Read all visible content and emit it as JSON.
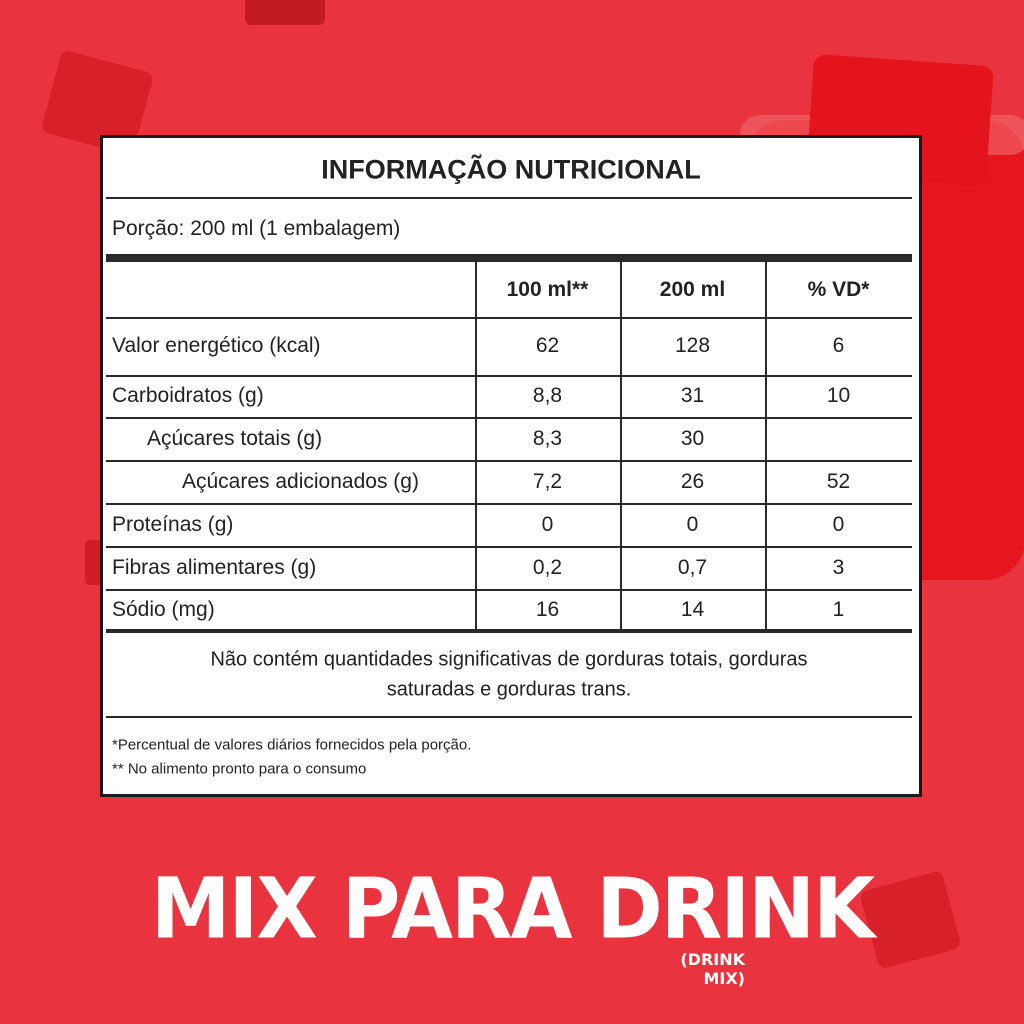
{
  "label": {
    "title": "INFORMAÇÃO NUTRICIONAL",
    "portion": "Porção: 200 ml (1 embalagem)",
    "columns": [
      "100 ml**",
      "200 ml",
      "% VD*"
    ],
    "rows": [
      [
        "Valor energético (kcal)",
        "62",
        "128",
        "6"
      ],
      [
        "Carboidratos (g)",
        "8,8",
        "31",
        "10"
      ],
      [
        "Açúcares totais (g)",
        "8,3",
        "30",
        null
      ],
      [
        "Açúcares adicionados (g)",
        "7,2",
        "26",
        "52"
      ],
      [
        "Proteínas (g)",
        "0",
        "0",
        "0"
      ],
      [
        "Fibras alimentares (g)",
        "0,2",
        "0,7",
        "3"
      ],
      [
        "Sódio (mg)",
        "16",
        "14",
        "1"
      ]
    ],
    "note": [
      "Não contém quantidades significativas de gorduras totais, gorduras",
      "saturadas e gorduras trans."
    ],
    "footnotes": [
      "*Percentual de valores diários fornecidos pela porção.",
      "** No alimento pronto para o consumo"
    ]
  },
  "brand": {
    "title": "MIX PARA DRINK",
    "subtitle": "(DRINK MIX)"
  }
}
